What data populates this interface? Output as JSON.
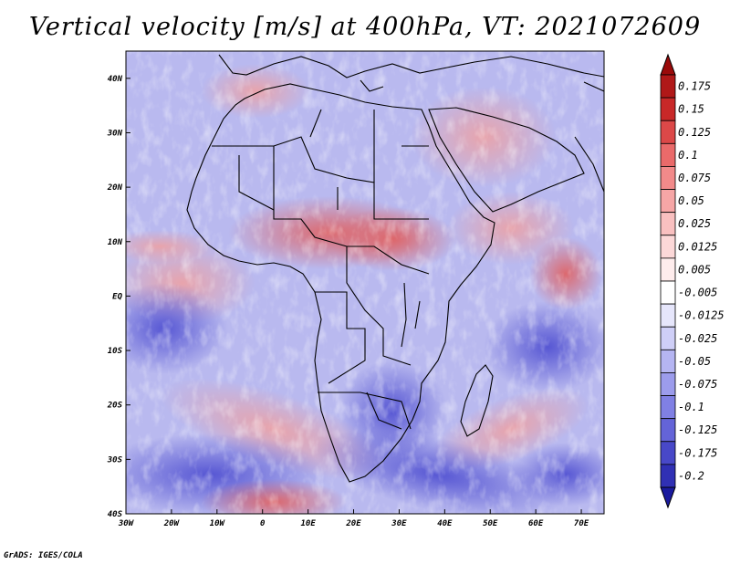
{
  "title": "Vertical velocity [m/s] at 400hPa, VT: 2021072609",
  "credit": "GrADS: IGES/COLA",
  "map": {
    "region": "Africa and surrounding oceans",
    "lon_range": [
      -30,
      75
    ],
    "lat_range": [
      -40,
      45
    ],
    "lat_ticks": [
      {
        "label": "40N",
        "value": 40
      },
      {
        "label": "30N",
        "value": 30
      },
      {
        "label": "20N",
        "value": 20
      },
      {
        "label": "10N",
        "value": 10
      },
      {
        "label": "EQ",
        "value": 0
      },
      {
        "label": "10S",
        "value": -10
      },
      {
        "label": "20S",
        "value": -20
      },
      {
        "label": "30S",
        "value": -30
      },
      {
        "label": "40S",
        "value": -40
      }
    ],
    "lon_ticks": [
      {
        "label": "30W",
        "value": -30
      },
      {
        "label": "20W",
        "value": -20
      },
      {
        "label": "10W",
        "value": -10
      },
      {
        "label": "0",
        "value": 0
      },
      {
        "label": "10E",
        "value": 10
      },
      {
        "label": "20E",
        "value": 20
      },
      {
        "label": "30E",
        "value": 30
      },
      {
        "label": "40E",
        "value": 40
      },
      {
        "label": "50E",
        "value": 50
      },
      {
        "label": "60E",
        "value": 60
      },
      {
        "label": "70E",
        "value": 70
      }
    ]
  },
  "colorbar": {
    "levels": [
      {
        "label": "0.175",
        "color": "#b01818"
      },
      {
        "label": "0.15",
        "color": "#c82828"
      },
      {
        "label": "0.125",
        "color": "#dc4848"
      },
      {
        "label": "0.1",
        "color": "#ea6a6a"
      },
      {
        "label": "0.075",
        "color": "#f28a8a"
      },
      {
        "label": "0.05",
        "color": "#f6a6a6"
      },
      {
        "label": "0.025",
        "color": "#f9c0c0"
      },
      {
        "label": "0.0125",
        "color": "#fcd8d8"
      },
      {
        "label": "0.005",
        "color": "#feecec"
      },
      {
        "label": "-0.005",
        "color": "#ffffff"
      },
      {
        "label": "-0.0125",
        "color": "#e6e6fb"
      },
      {
        "label": "-0.025",
        "color": "#cfcff7"
      },
      {
        "label": "-0.05",
        "color": "#b5b5f2"
      },
      {
        "label": "-0.075",
        "color": "#9c9cec"
      },
      {
        "label": "-0.1",
        "color": "#8080e4"
      },
      {
        "label": "-0.125",
        "color": "#6464d8"
      },
      {
        "label": "-0.175",
        "color": "#4848c8"
      },
      {
        "label": "-0.2",
        "color": "#3030b4"
      }
    ],
    "top_arrow_color": "#9a0a0a",
    "bottom_arrow_color": "#1a1a9e"
  }
}
